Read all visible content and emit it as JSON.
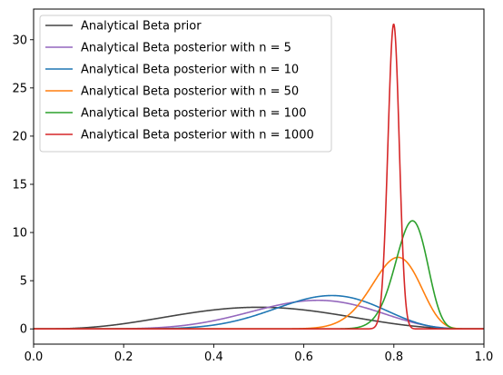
{
  "chart_data": {
    "type": "line",
    "title": "",
    "xlabel": "",
    "ylabel": "",
    "xlim": [
      0,
      1
    ],
    "ylim": [
      -1.58,
      33.18
    ],
    "grid": false,
    "legend_placement": "upper-left",
    "x_ticks": [
      "0.0",
      "0.2",
      "0.4",
      "0.6",
      "0.8",
      "1.0"
    ],
    "y_ticks": [
      "0",
      "5",
      "10",
      "15",
      "20",
      "25",
      "30"
    ],
    "series": [
      {
        "name": "Analytical Beta prior",
        "name_prefix": "Analytical Beta prior",
        "name_math": "",
        "color": "#444444",
        "distribution": "beta",
        "alpha": 4.2,
        "beta": 4.2,
        "x": [
          0.05,
          0.1,
          0.15,
          0.2,
          0.3,
          0.4,
          0.5,
          0.6,
          0.7,
          0.8,
          0.9,
          0.95
        ],
        "values": [
          0.02,
          0.11,
          0.33,
          0.63,
          1.39,
          2.1,
          2.4,
          2.1,
          1.39,
          0.63,
          0.11,
          0.02
        ]
      },
      {
        "name": "Analytical Beta posterior with n = 5",
        "name_prefix": "Analytical Beta posterior with ",
        "name_math": "n = 5",
        "color": "#9467bd",
        "distribution": "beta",
        "alpha": 8.2,
        "beta": 5.2,
        "x": [
          0.2,
          0.3,
          0.4,
          0.5,
          0.6,
          0.62,
          0.7,
          0.8,
          0.9
        ],
        "values": [
          0.05,
          0.34,
          1.15,
          2.25,
          2.98,
          3.0,
          2.65,
          1.38,
          0.24
        ]
      },
      {
        "name": "Analytical Beta posterior with n = 10",
        "name_prefix": "Analytical Beta posterior with ",
        "name_math": "n = 10",
        "color": "#1f77b4",
        "distribution": "beta",
        "alpha": 11.2,
        "beta": 6.2,
        "x": [
          0.3,
          0.4,
          0.5,
          0.6,
          0.67,
          0.7,
          0.8,
          0.9
        ],
        "values": [
          0.09,
          0.58,
          1.81,
          3.33,
          3.73,
          3.68,
          2.3,
          0.39
        ]
      },
      {
        "name": "Analytical Beta posterior with n = 50",
        "name_prefix": "Analytical Beta posterior with ",
        "name_math": "n = 50",
        "color": "#ff7f0e",
        "distribution": "beta",
        "alpha": 43.4,
        "beta": 11.0,
        "x": [
          0.6,
          0.65,
          0.7,
          0.75,
          0.8,
          0.81,
          0.85,
          0.9,
          0.95
        ],
        "values": [
          0.12,
          0.76,
          2.77,
          5.92,
          7.85,
          7.9,
          6.0,
          1.66,
          0.07
        ]
      },
      {
        "name": "Analytical Beta posterior with n = 100",
        "name_prefix": "Analytical Beta posterior with ",
        "name_math": "n = 100",
        "color": "#2ca02c",
        "distribution": "beta",
        "alpha": 89.0,
        "beta": 17.6,
        "x": [
          0.75,
          0.78,
          0.8,
          0.82,
          0.845,
          0.86,
          0.88,
          0.9,
          0.93
        ],
        "values": [
          0.9,
          3.1,
          5.8,
          9.0,
          11.45,
          10.8,
          7.6,
          3.6,
          0.5
        ]
      },
      {
        "name": "Analytical Beta posterior with n = 1000",
        "name_prefix": "Analytical Beta posterior with ",
        "name_math": "n = 1000",
        "color": "#d62728",
        "distribution": "beta",
        "alpha": 805.0,
        "beta": 202.5,
        "x": [
          0.76,
          0.78,
          0.79,
          0.8,
          0.81,
          0.82,
          0.84
        ],
        "values": [
          0.4,
          7.0,
          21.0,
          31.5,
          24.0,
          8.0,
          0.1
        ]
      }
    ]
  }
}
